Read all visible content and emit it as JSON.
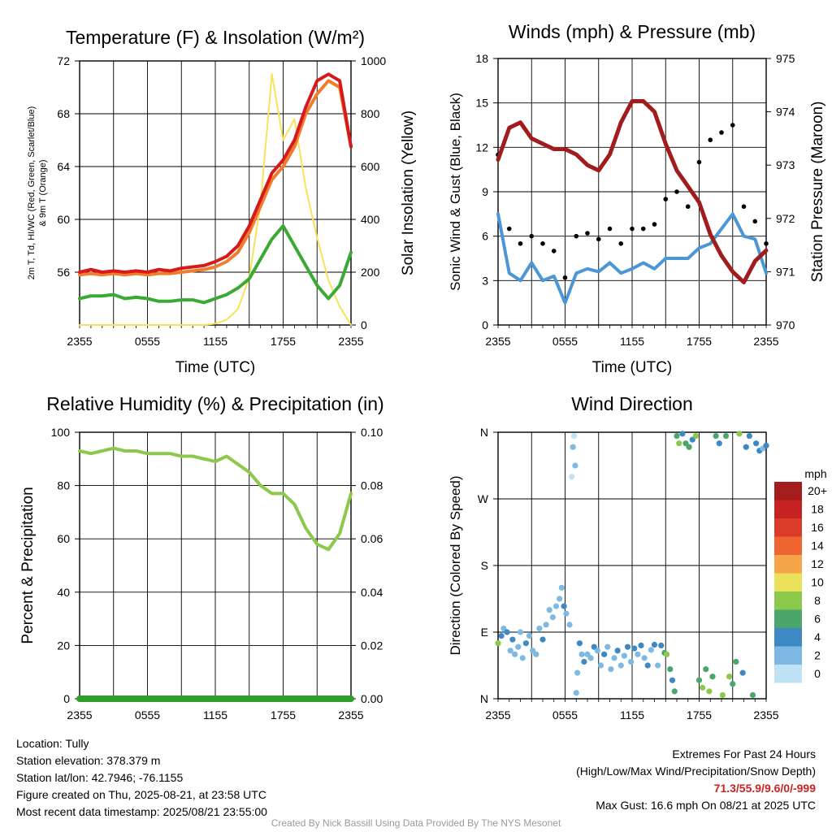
{
  "colors": {
    "temp": "#d7191c",
    "wetbulb9m": "#f07c2e",
    "dewpoint": "#3aaa35",
    "insolation": "#f7e25a",
    "wind": "#4a96d6",
    "gust": "#000000",
    "pressure": "#a11c1c",
    "humidity": "#8cc84b",
    "precip": "#2f9e2f"
  },
  "chart_data": [
    {
      "id": "temp",
      "type": "line",
      "title": "Temperature (F) & Insolation (W/m²)",
      "xlabel": "Time (UTC)",
      "ylabel": "2m T, Td, HI/WC (Red, Green, Scarlet/Blue) & 9m T (Orange)",
      "y2label": "Solar Insolation (Yellow)",
      "x_ticks": [
        "2355",
        "0555",
        "1155",
        "1755",
        "2355"
      ],
      "y_ticks": [
        56,
        60,
        64,
        68,
        72
      ],
      "y2_ticks": [
        0,
        200,
        400,
        600,
        800,
        1000
      ],
      "ylim": [
        52,
        72
      ],
      "y2lim": [
        0,
        1000
      ],
      "grid": true,
      "x_hours": [
        0,
        1,
        2,
        3,
        4,
        5,
        6,
        7,
        8,
        9,
        10,
        11,
        12,
        13,
        14,
        15,
        16,
        17,
        18,
        19,
        20,
        21,
        22,
        23,
        24
      ],
      "series": [
        {
          "key": "temp",
          "axis": "left",
          "values": [
            56.0,
            56.2,
            56.0,
            56.1,
            56.0,
            56.1,
            56.0,
            56.2,
            56.1,
            56.3,
            56.4,
            56.5,
            56.8,
            57.2,
            58.0,
            59.5,
            61.5,
            63.5,
            64.5,
            66.0,
            68.5,
            70.5,
            71.0,
            70.5,
            65.5
          ]
        },
        {
          "key": "wetbulb9m",
          "axis": "left",
          "values": [
            55.8,
            55.9,
            55.8,
            55.9,
            55.8,
            55.9,
            55.8,
            55.9,
            55.9,
            56.0,
            56.1,
            56.2,
            56.4,
            56.8,
            57.5,
            59.0,
            61.0,
            63.0,
            64.0,
            65.5,
            68.0,
            69.5,
            70.5,
            70.0,
            65.5
          ]
        },
        {
          "key": "dewpoint",
          "axis": "left",
          "values": [
            54.0,
            54.2,
            54.2,
            54.3,
            54.0,
            54.1,
            54.0,
            53.8,
            53.8,
            53.9,
            53.9,
            53.7,
            54.0,
            54.3,
            54.8,
            55.5,
            57.0,
            58.5,
            59.5,
            58.0,
            56.5,
            55.0,
            54.0,
            55.0,
            57.5
          ]
        },
        {
          "key": "insolation",
          "axis": "right",
          "values": [
            0,
            0,
            0,
            0,
            0,
            0,
            0,
            0,
            0,
            0,
            0,
            0,
            5,
            20,
            60,
            180,
            460,
            950,
            700,
            780,
            520,
            330,
            170,
            70,
            0
          ]
        }
      ]
    },
    {
      "id": "wind",
      "type": "line",
      "title": "Winds (mph) & Pressure (mb)",
      "xlabel": "Time (UTC)",
      "ylabel": "Sonic Wind & Gust (Blue, Black)",
      "y2label": "Station Pressure (Maroon)",
      "x_ticks": [
        "2355",
        "0555",
        "1155",
        "1755",
        "2355"
      ],
      "y_ticks": [
        0,
        3,
        6,
        9,
        12,
        15,
        18
      ],
      "y2_ticks": [
        970,
        971,
        972,
        973,
        974,
        975
      ],
      "ylim": [
        0,
        18
      ],
      "y2lim": [
        970,
        975
      ],
      "grid": true,
      "x_hours": [
        0,
        1,
        2,
        3,
        4,
        5,
        6,
        7,
        8,
        9,
        10,
        11,
        12,
        13,
        14,
        15,
        16,
        17,
        18,
        19,
        20,
        21,
        22,
        23,
        24
      ],
      "series": [
        {
          "key": "wind",
          "axis": "left",
          "values": [
            7.5,
            3.5,
            3.0,
            4.2,
            3.0,
            3.3,
            1.5,
            3.5,
            3.8,
            3.6,
            4.2,
            3.5,
            3.8,
            4.2,
            3.8,
            4.5,
            4.5,
            4.5,
            5.2,
            5.5,
            6.5,
            7.5,
            6.0,
            5.8,
            3.5
          ]
        },
        {
          "key": "gust",
          "axis": "left",
          "values": [
            11.5,
            6.5,
            5.5,
            6.0,
            5.5,
            5.0,
            3.2,
            6.0,
            6.2,
            5.8,
            6.5,
            5.5,
            6.5,
            6.5,
            6.8,
            8.5,
            9.0,
            8.0,
            11.0,
            12.5,
            13.0,
            13.5,
            8.0,
            7.0,
            5.5
          ]
        },
        {
          "key": "pressure",
          "axis": "right",
          "values": [
            973.1,
            973.7,
            973.8,
            973.5,
            973.4,
            973.3,
            973.3,
            973.2,
            973.0,
            972.9,
            973.2,
            973.8,
            974.2,
            974.2,
            974.0,
            973.4,
            972.9,
            972.6,
            972.3,
            971.7,
            971.3,
            971.0,
            970.8,
            971.2,
            971.4
          ]
        }
      ]
    },
    {
      "id": "rh",
      "type": "line",
      "title": "Relative Humidity (%) & Precipitation (in)",
      "ylabel": "Percent & Precipitation",
      "x_ticks": [
        "2355",
        "0555",
        "1155",
        "1755",
        "2355"
      ],
      "y_ticks": [
        0,
        20,
        40,
        60,
        80,
        100
      ],
      "y2_ticks": [
        "0.00",
        "0.02",
        "0.04",
        "0.06",
        "0.08",
        "0.10"
      ],
      "ylim": [
        0,
        100
      ],
      "y2lim": [
        0,
        0.1
      ],
      "grid": true,
      "x_hours": [
        0,
        1,
        2,
        3,
        4,
        5,
        6,
        7,
        8,
        9,
        10,
        11,
        12,
        13,
        14,
        15,
        16,
        17,
        18,
        19,
        20,
        21,
        22,
        23,
        24
      ],
      "series": [
        {
          "key": "humidity",
          "axis": "left",
          "values": [
            93,
            92,
            93,
            94,
            93,
            93,
            92,
            92,
            92,
            91,
            91,
            90,
            89,
            91,
            88,
            85,
            80,
            77,
            77,
            73,
            64,
            58,
            56,
            62,
            77
          ]
        },
        {
          "key": "precip",
          "axis": "right",
          "values": [
            0,
            0,
            0,
            0,
            0,
            0,
            0,
            0,
            0,
            0,
            0,
            0,
            0,
            0,
            0,
            0,
            0,
            0,
            0,
            0,
            0,
            0,
            0,
            0,
            0
          ]
        }
      ]
    },
    {
      "id": "dir",
      "type": "scatter",
      "title": "Wind Direction",
      "ylabel": "Direction (Colored By Speed)",
      "x_ticks": [
        "2355",
        "0555",
        "1155",
        "1755",
        "2355"
      ],
      "y_ticks": [
        "N",
        "E",
        "S",
        "W",
        "N"
      ],
      "ylim": [
        0,
        360
      ],
      "grid": true,
      "legend_title": "mph",
      "legend_position": "right",
      "colorbar": [
        {
          "label": "20+",
          "color": "#a51c1c"
        },
        {
          "label": "18",
          "color": "#c62222"
        },
        {
          "label": "16",
          "color": "#db3c2a"
        },
        {
          "label": "14",
          "color": "#ef6530"
        },
        {
          "label": "12",
          "color": "#f7a54a"
        },
        {
          "label": "10",
          "color": "#ebe05a"
        },
        {
          "label": "8",
          "color": "#8cc84b"
        },
        {
          "label": "6",
          "color": "#4aa66a"
        },
        {
          "label": "4",
          "color": "#3e88c4"
        },
        {
          "label": "2",
          "color": "#7db9e3"
        },
        {
          "label": "0",
          "color": "#bfe2f5"
        }
      ],
      "points": [
        [
          0.0,
          75,
          8
        ],
        [
          0.3,
          85,
          4
        ],
        [
          0.5,
          95,
          3
        ],
        [
          0.8,
          90,
          4
        ],
        [
          1.1,
          65,
          3
        ],
        [
          1.3,
          80,
          4
        ],
        [
          1.5,
          60,
          2
        ],
        [
          1.8,
          70,
          3
        ],
        [
          2.0,
          90,
          3
        ],
        [
          2.2,
          55,
          2
        ],
        [
          2.5,
          75,
          4
        ],
        [
          2.8,
          85,
          3
        ],
        [
          3.1,
          65,
          2
        ],
        [
          3.4,
          60,
          2
        ],
        [
          3.7,
          95,
          3
        ],
        [
          4.0,
          80,
          4
        ],
        [
          4.3,
          100,
          2
        ],
        [
          4.6,
          120,
          3
        ],
        [
          4.9,
          110,
          2
        ],
        [
          5.2,
          125,
          3
        ],
        [
          5.5,
          135,
          2
        ],
        [
          5.7,
          150,
          2
        ],
        [
          5.9,
          125,
          4
        ],
        [
          6.1,
          115,
          3
        ],
        [
          6.4,
          100,
          2
        ],
        [
          6.6,
          300,
          1
        ],
        [
          6.7,
          340,
          2
        ],
        [
          6.8,
          355,
          1
        ],
        [
          6.9,
          315,
          2
        ],
        [
          7.0,
          8,
          2
        ],
        [
          7.1,
          35,
          3
        ],
        [
          7.3,
          75,
          4
        ],
        [
          7.5,
          60,
          3
        ],
        [
          7.7,
          50,
          4
        ],
        [
          8.0,
          60,
          3
        ],
        [
          8.3,
          55,
          2
        ],
        [
          8.6,
          70,
          4
        ],
        [
          8.9,
          65,
          3
        ],
        [
          9.2,
          45,
          2
        ],
        [
          9.5,
          60,
          4
        ],
        [
          9.8,
          70,
          3
        ],
        [
          10.1,
          40,
          2
        ],
        [
          10.4,
          55,
          3
        ],
        [
          10.7,
          65,
          4
        ],
        [
          11.0,
          45,
          3
        ],
        [
          11.3,
          58,
          2
        ],
        [
          11.6,
          70,
          4
        ],
        [
          11.9,
          50,
          3
        ],
        [
          12.2,
          68,
          4
        ],
        [
          12.5,
          60,
          3
        ],
        [
          12.8,
          72,
          4
        ],
        [
          13.1,
          55,
          3
        ],
        [
          13.4,
          45,
          4
        ],
        [
          13.7,
          66,
          3
        ],
        [
          14.0,
          73,
          4
        ],
        [
          14.3,
          45,
          3
        ],
        [
          14.6,
          72,
          4
        ],
        [
          14.9,
          62,
          6
        ],
        [
          15.1,
          60,
          8
        ],
        [
          15.4,
          40,
          6
        ],
        [
          15.6,
          25,
          5
        ],
        [
          15.8,
          10,
          7
        ],
        [
          16.0,
          355,
          6
        ],
        [
          16.2,
          345,
          8
        ],
        [
          16.5,
          358,
          4
        ],
        [
          16.8,
          345,
          6
        ],
        [
          17.1,
          340,
          7
        ],
        [
          17.4,
          350,
          5
        ],
        [
          17.7,
          355,
          8
        ],
        [
          18.0,
          25,
          6
        ],
        [
          18.3,
          15,
          8
        ],
        [
          18.6,
          40,
          6
        ],
        [
          18.9,
          10,
          9
        ],
        [
          19.2,
          30,
          7
        ],
        [
          19.5,
          355,
          6
        ],
        [
          19.8,
          345,
          4
        ],
        [
          20.1,
          5,
          8
        ],
        [
          20.4,
          355,
          6
        ],
        [
          20.7,
          30,
          9
        ],
        [
          21.0,
          20,
          6
        ],
        [
          21.3,
          50,
          7
        ],
        [
          21.6,
          358,
          8
        ],
        [
          21.9,
          35,
          5
        ],
        [
          22.2,
          340,
          4
        ],
        [
          22.5,
          355,
          4
        ],
        [
          22.8,
          5,
          6
        ],
        [
          23.1,
          345,
          5
        ],
        [
          23.4,
          335,
          4
        ],
        [
          23.7,
          338,
          3
        ],
        [
          24.0,
          342,
          4
        ]
      ]
    }
  ],
  "info": {
    "location": "Location: Tully",
    "elevation": "Station elevation: 378.379 m",
    "latlon": "Station lat/lon: 42.7946; -76.1155",
    "created": "Figure created on Thu, 2025-08-21, at 23:58 UTC",
    "recent": "Most recent data timestamp: 2025/08/21 23:55:00",
    "extremes_title": "Extremes For Past 24 Hours",
    "extremes_fields": "(High/Low/Max Wind/Precipitation/Snow Depth)",
    "extremes_values": "71.3/55.9/9.6/0/-999",
    "max_gust": "Max Gust: 16.6 mph On 08/21 at 2025 UTC",
    "credit": "Created By Nick Bassill Using Data Provided By The NYS Mesonet"
  }
}
